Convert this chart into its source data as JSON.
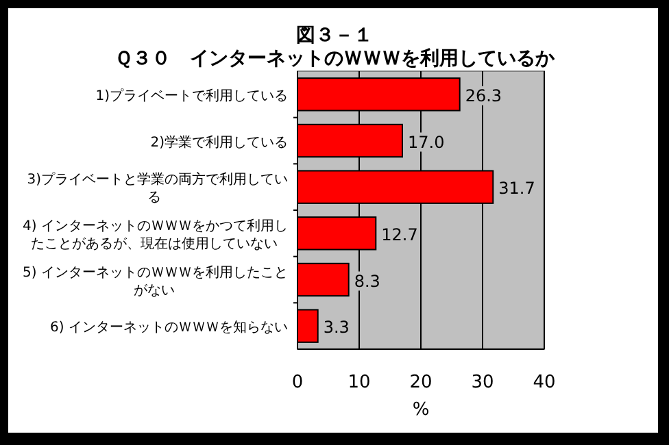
{
  "chart_data": {
    "type": "bar",
    "orientation": "horizontal",
    "title": "図３－１",
    "subtitle": "Ｑ３０　インターネットのＷＷＷを利用しているか",
    "xlabel": "%",
    "categories": [
      "1)プライベートで利用している",
      "2)学業で利用している",
      "3)プライベートと学業の両方で利用している",
      "4) インターネットのＷＷＷをかつて利用したことがあるが、現在は使用していない",
      "5) インターネットのＷＷＷを利用したことがない",
      "6) インターネットのＷＷＷを知らない"
    ],
    "values": [
      26.3,
      17.0,
      31.7,
      12.7,
      8.3,
      3.3
    ],
    "value_labels": [
      "26.3",
      "17.0",
      "31.7",
      "12.7",
      "8.3",
      "3.3"
    ],
    "color": "#ff0000",
    "xlim": [
      0,
      40
    ],
    "xticks": [
      0,
      10,
      20,
      30,
      40
    ],
    "grid": "x"
  }
}
